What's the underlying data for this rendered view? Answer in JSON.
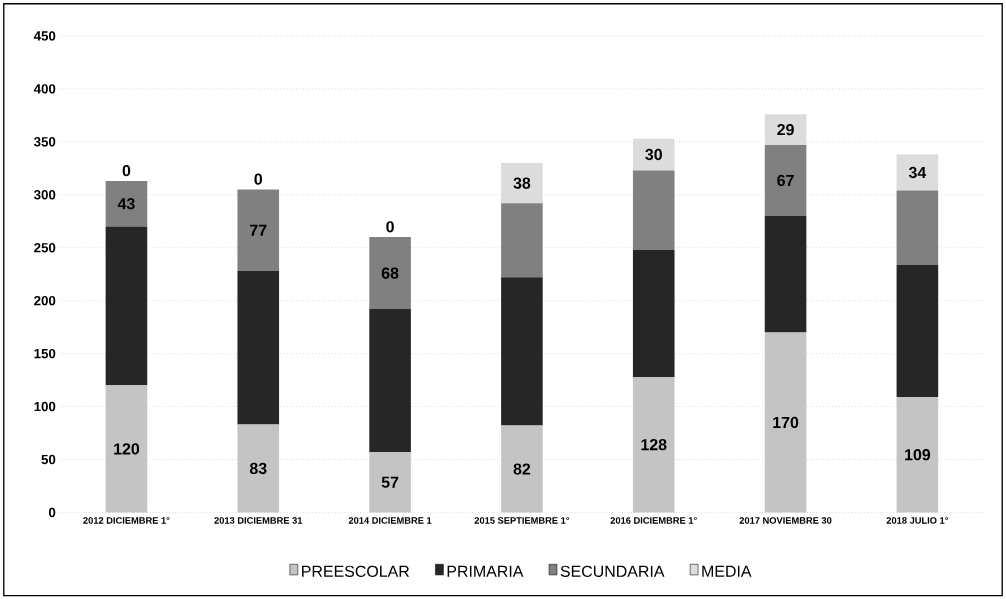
{
  "chart_data": {
    "type": "bar",
    "stacked": true,
    "categories": [
      "2012 DICIEMBRE 1°",
      "2013 DICIEMBRE 31",
      "2014 DICIEMBRE 1",
      "2015 SEPTIEMBRE 1°",
      "2016 DICIEMBRE 1°",
      "2017 NOVIEMBRE 30",
      "2018 JULIO 1°"
    ],
    "series": [
      {
        "name": "PREESCOLAR",
        "color": "#c4c4c4",
        "values": [
          120,
          83,
          57,
          82,
          128,
          170,
          109
        ],
        "value_labels": [
          "120",
          "83",
          "57",
          "82",
          "128",
          "170",
          "109"
        ]
      },
      {
        "name": "PRIMARIA",
        "color": "#262626",
        "values": [
          150,
          145,
          135,
          140,
          120,
          110,
          125
        ]
      },
      {
        "name": "SECUNDARIA",
        "color": "#808080",
        "values": [
          43,
          77,
          68,
          70,
          75,
          67,
          70
        ],
        "value_labels": [
          "43",
          "77",
          "68",
          null,
          null,
          "67",
          null
        ]
      },
      {
        "name": "MEDIA",
        "color": "#dcdcdc",
        "values": [
          0,
          0,
          0,
          38,
          30,
          29,
          34
        ],
        "value_labels": [
          "0",
          "0",
          "0",
          "38",
          "30",
          "29",
          "34"
        ]
      }
    ],
    "ylim": [
      0,
      450
    ],
    "yticks": [
      0,
      50,
      100,
      150,
      200,
      250,
      300,
      350,
      400,
      450
    ],
    "grid": "y",
    "legend": "bottom"
  }
}
